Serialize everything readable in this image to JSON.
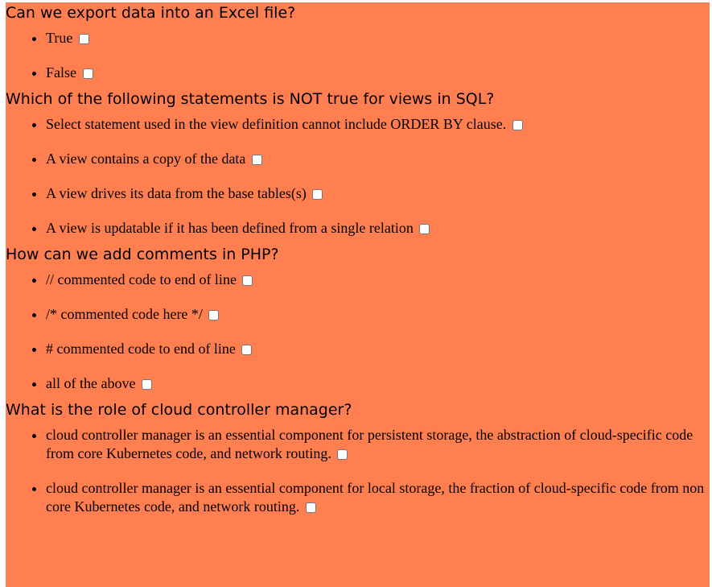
{
  "questions": [
    {
      "text": "Can we export data into an Excel file?",
      "options": [
        "True",
        "False"
      ]
    },
    {
      "text": "Which of the following statements is NOT true for views in SQL?",
      "options": [
        "Select statement used in the view definition cannot include ORDER BY clause.",
        "A view contains a copy of the data",
        "A view drives its data from the base tables(s)",
        "A view is updatable if it has been defined from a single relation"
      ]
    },
    {
      "text": "How can we add comments in PHP?",
      "options": [
        "// commented code to end of line",
        "/* commented code here */",
        "# commented code to end of line",
        "all of the above"
      ]
    },
    {
      "text": "What is the role of cloud controller manager?",
      "options": [
        "cloud controller manager is an essential component for persistent storage, the abstraction of cloud-specific code from core Kubernetes code, and network routing.",
        "cloud controller manager is an essential component for local storage, the fraction of cloud-specific code from non core Kubernetes code, and network routing."
      ]
    }
  ],
  "colors": {
    "background": "#ff7f50"
  }
}
